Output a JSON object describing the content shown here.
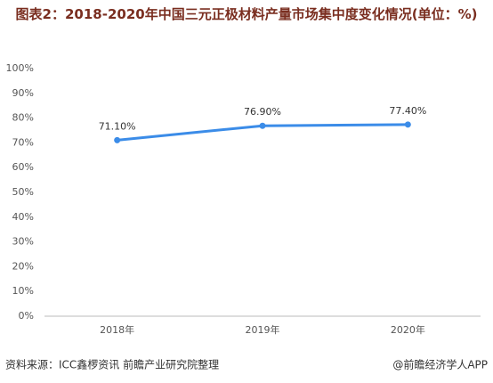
{
  "chart_data": {
    "type": "line",
    "title": "图表2：2018-2020年中国三元正极材料产量市场集中度变化情况(单位：%)",
    "categories": [
      "2018年",
      "2019年",
      "2020年"
    ],
    "series": [
      {
        "name": "市场集中度",
        "color": "#3b8ce8",
        "values": [
          71.1,
          76.9,
          77.4
        ],
        "value_labels": [
          "71.10%",
          "76.90%",
          "77.40%"
        ]
      }
    ],
    "ylim": [
      0,
      100
    ],
    "yticks": [
      {
        "value": 0,
        "label": "0%"
      },
      {
        "value": 10,
        "label": "10%"
      },
      {
        "value": 20,
        "label": "20%"
      },
      {
        "value": 30,
        "label": "30%"
      },
      {
        "value": 40,
        "label": "40%"
      },
      {
        "value": 50,
        "label": "50%"
      },
      {
        "value": 60,
        "label": "60%"
      },
      {
        "value": 70,
        "label": "70%"
      },
      {
        "value": 80,
        "label": "80%"
      },
      {
        "value": 90,
        "label": "90%"
      },
      {
        "value": 100,
        "label": "100%"
      }
    ],
    "source": "资料来源：ICC鑫椤资讯 前瞻产业研究院整理",
    "credit": "@前瞻经济学人APP"
  }
}
